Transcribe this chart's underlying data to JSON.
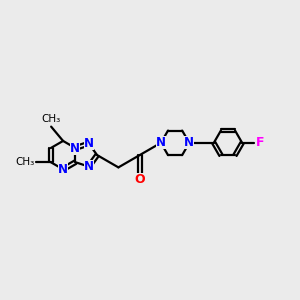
{
  "bg_color": "#ebebeb",
  "N_color": "#0000ff",
  "O_color": "#ff0000",
  "F_color": "#ff00ff",
  "bond_color": "#000000",
  "bond_lw": 1.6,
  "dbl_off": 0.055,
  "figsize": [
    3.0,
    3.0
  ],
  "dpi": 100,
  "xlim": [
    0.0,
    8.8
  ],
  "ylim": [
    1.5,
    6.0
  ]
}
